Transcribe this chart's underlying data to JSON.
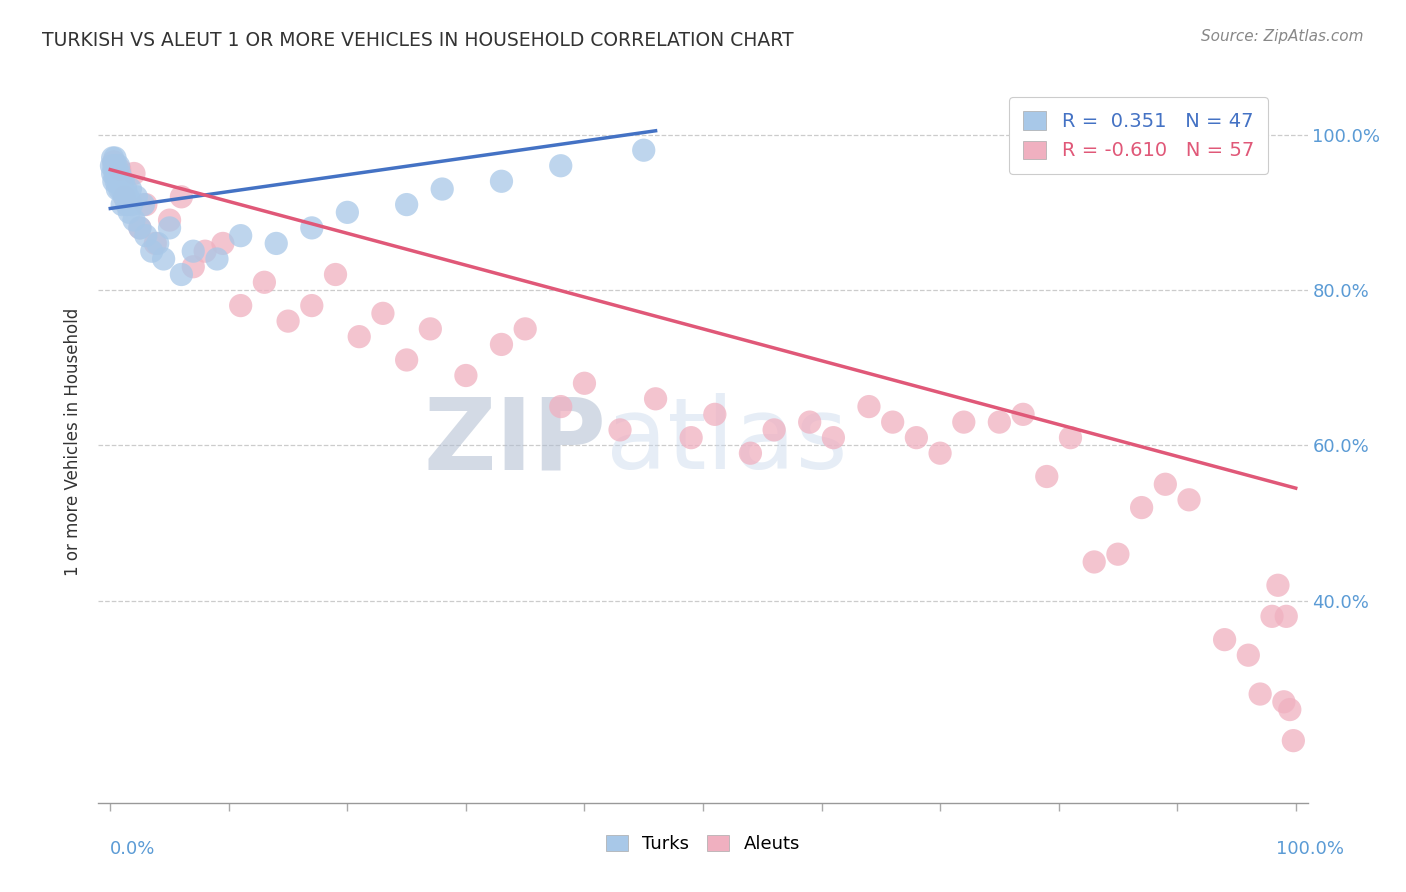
{
  "title": "TURKISH VS ALEUT 1 OR MORE VEHICLES IN HOUSEHOLD CORRELATION CHART",
  "ylabel": "1 or more Vehicles in Household",
  "source": "Source: ZipAtlas.com",
  "watermark_zip": "ZIP",
  "watermark_atlas": "atlas",
  "legend_blue_r": "R =  0.351",
  "legend_blue_n": "N = 47",
  "legend_pink_r": "R = -0.610",
  "legend_pink_n": "N = 57",
  "blue_color": "#a8c8e8",
  "pink_color": "#f0b0c0",
  "blue_line_color": "#4472c4",
  "pink_line_color": "#e05878",
  "turks_x": [
    0.001,
    0.002,
    0.002,
    0.003,
    0.003,
    0.004,
    0.004,
    0.005,
    0.005,
    0.006,
    0.006,
    0.007,
    0.007,
    0.008,
    0.008,
    0.009,
    0.01,
    0.01,
    0.011,
    0.012,
    0.013,
    0.014,
    0.015,
    0.016,
    0.017,
    0.018,
    0.02,
    0.022,
    0.025,
    0.028,
    0.03,
    0.035,
    0.04,
    0.045,
    0.05,
    0.06,
    0.07,
    0.09,
    0.11,
    0.14,
    0.17,
    0.2,
    0.25,
    0.28,
    0.33,
    0.38,
    0.45
  ],
  "turks_y": [
    0.96,
    0.97,
    0.95,
    0.96,
    0.94,
    0.97,
    0.95,
    0.96,
    0.94,
    0.95,
    0.93,
    0.94,
    0.96,
    0.93,
    0.95,
    0.94,
    0.93,
    0.91,
    0.94,
    0.92,
    0.93,
    0.91,
    0.92,
    0.9,
    0.93,
    0.91,
    0.89,
    0.92,
    0.88,
    0.91,
    0.87,
    0.85,
    0.86,
    0.84,
    0.88,
    0.82,
    0.85,
    0.84,
    0.87,
    0.86,
    0.88,
    0.9,
    0.91,
    0.93,
    0.94,
    0.96,
    0.98
  ],
  "aleuts_x": [
    0.003,
    0.008,
    0.012,
    0.02,
    0.025,
    0.03,
    0.038,
    0.05,
    0.06,
    0.07,
    0.08,
    0.095,
    0.11,
    0.13,
    0.15,
    0.17,
    0.19,
    0.21,
    0.23,
    0.25,
    0.27,
    0.3,
    0.33,
    0.35,
    0.38,
    0.4,
    0.43,
    0.46,
    0.49,
    0.51,
    0.54,
    0.56,
    0.59,
    0.61,
    0.64,
    0.66,
    0.68,
    0.7,
    0.72,
    0.75,
    0.77,
    0.79,
    0.81,
    0.83,
    0.85,
    0.87,
    0.89,
    0.91,
    0.94,
    0.96,
    0.97,
    0.98,
    0.985,
    0.99,
    0.992,
    0.995,
    0.998
  ],
  "aleuts_y": [
    0.965,
    0.955,
    0.92,
    0.95,
    0.88,
    0.91,
    0.86,
    0.89,
    0.92,
    0.83,
    0.85,
    0.86,
    0.78,
    0.81,
    0.76,
    0.78,
    0.82,
    0.74,
    0.77,
    0.71,
    0.75,
    0.69,
    0.73,
    0.75,
    0.65,
    0.68,
    0.62,
    0.66,
    0.61,
    0.64,
    0.59,
    0.62,
    0.63,
    0.61,
    0.65,
    0.63,
    0.61,
    0.59,
    0.63,
    0.63,
    0.64,
    0.56,
    0.61,
    0.45,
    0.46,
    0.52,
    0.55,
    0.53,
    0.35,
    0.33,
    0.28,
    0.38,
    0.42,
    0.27,
    0.38,
    0.26,
    0.22
  ],
  "ytick_labels": [
    "40.0%",
    "60.0%",
    "80.0%",
    "100.0%"
  ],
  "ytick_values": [
    0.4,
    0.6,
    0.8,
    1.0
  ],
  "ylim": [
    0.14,
    1.07
  ],
  "xlim": [
    -0.01,
    1.01
  ],
  "blue_line_x": [
    0.0,
    0.46
  ],
  "blue_line_y": [
    0.905,
    1.005
  ],
  "pink_line_x": [
    0.0,
    1.0
  ],
  "pink_line_y": [
    0.955,
    0.545
  ]
}
